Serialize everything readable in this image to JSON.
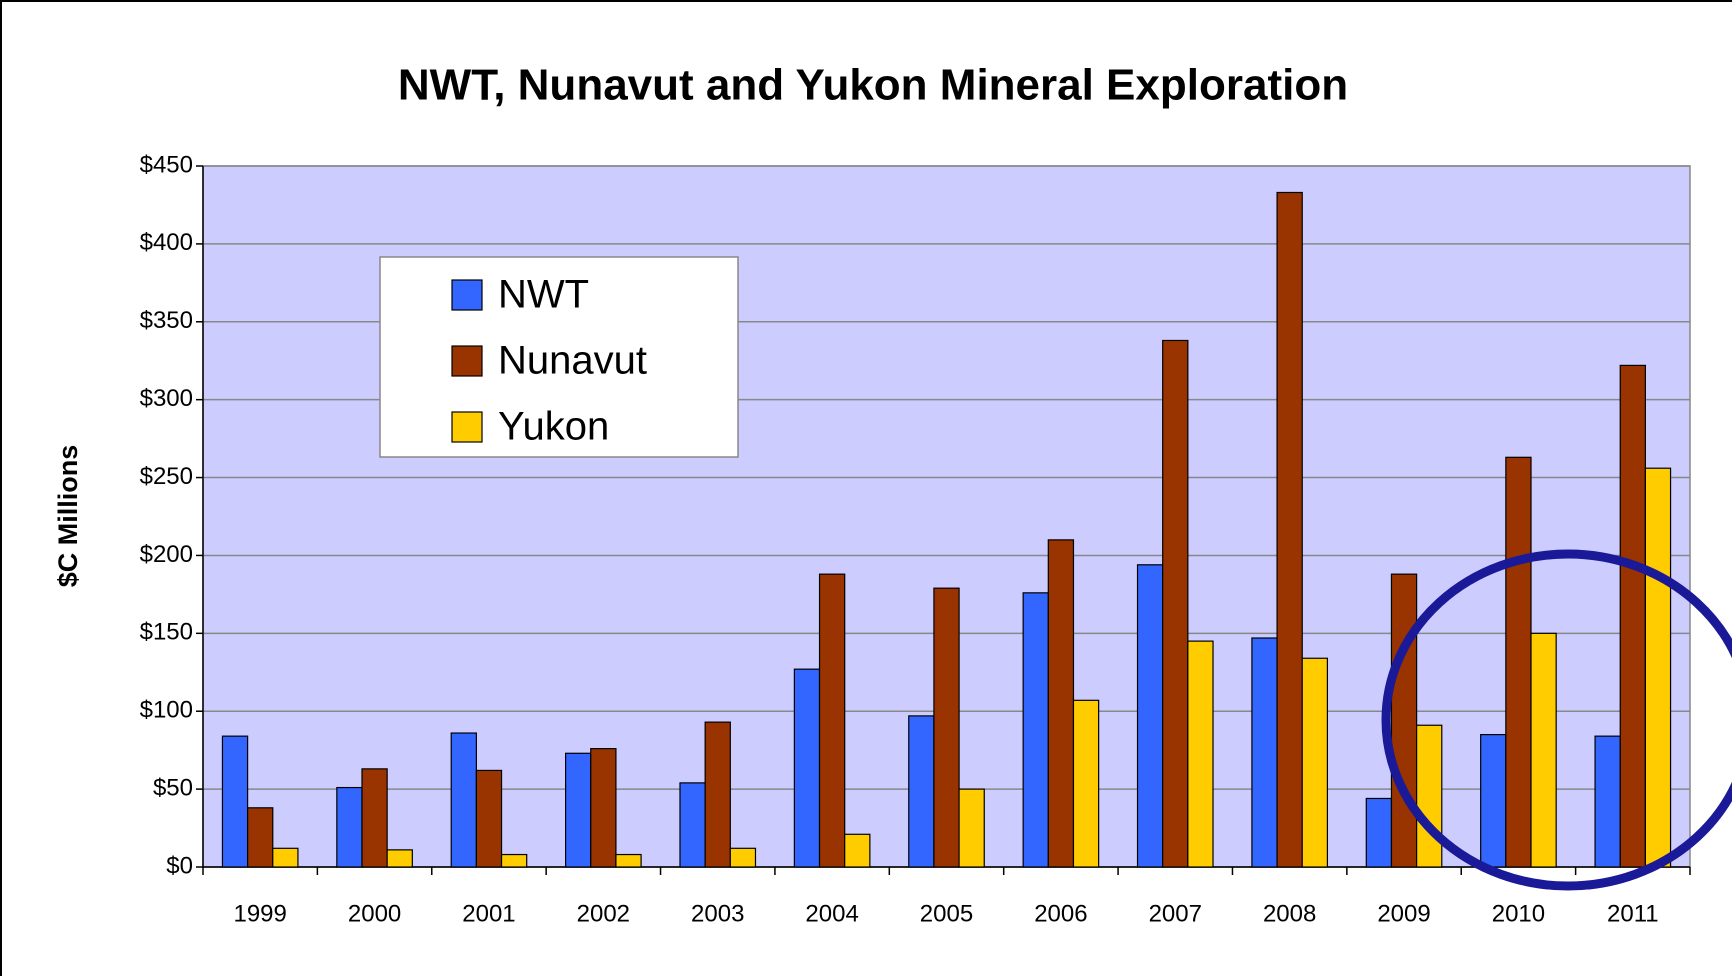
{
  "chart_data": {
    "type": "bar",
    "title": "NWT, Nunavut and Yukon Mineral Exploration",
    "y_label": "$C Millions",
    "categories": [
      "1999",
      "2000",
      "2001",
      "2002",
      "2003",
      "2004",
      "2005",
      "2006",
      "2007",
      "2008",
      "2009",
      "2010",
      "2011"
    ],
    "series": [
      {
        "name": "NWT",
        "color": "#3366ff",
        "values": [
          84,
          51,
          86,
          73,
          54,
          127,
          97,
          176,
          194,
          147,
          44,
          85,
          84
        ]
      },
      {
        "name": "Nunavut",
        "color": "#993300",
        "values": [
          38,
          63,
          62,
          76,
          93,
          188,
          179,
          210,
          338,
          433,
          188,
          263,
          322
        ]
      },
      {
        "name": "Yukon",
        "color": "#ffcc00",
        "values": [
          12,
          11,
          8,
          8,
          12,
          21,
          50,
          107,
          145,
          134,
          91,
          150,
          256
        ]
      }
    ],
    "ylim": [
      0,
      450
    ],
    "yticks": [
      {
        "value": 0,
        "label": "$0"
      },
      {
        "value": 50,
        "label": "$50"
      },
      {
        "value": 100,
        "label": "$100"
      },
      {
        "value": 150,
        "label": "$150"
      },
      {
        "value": 200,
        "label": "$200"
      },
      {
        "value": 250,
        "label": "$250"
      },
      {
        "value": 300,
        "label": "$300"
      },
      {
        "value": 350,
        "label": "$350"
      },
      {
        "value": 400,
        "label": "$400"
      },
      {
        "value": 450,
        "label": "$450"
      }
    ],
    "grid": true,
    "legend": "upper left"
  }
}
